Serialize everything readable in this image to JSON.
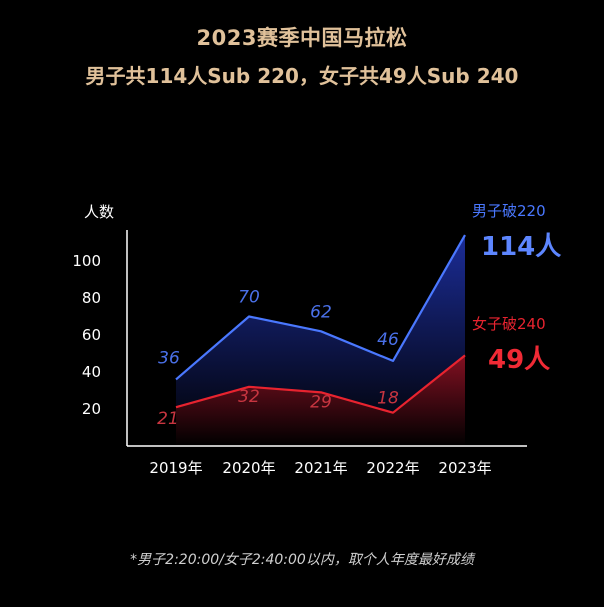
{
  "chart_data": {
    "type": "area",
    "title": "2023赛季中国马拉松",
    "subtitle": "男子共114人Sub 220，女子共49人Sub 240",
    "ylabel": "人数",
    "xlabel": "",
    "categories": [
      "2019年",
      "2020年",
      "2021年",
      "2022年",
      "2023年"
    ],
    "yticks": [
      20,
      40,
      60,
      80,
      100
    ],
    "ylim": [
      0,
      120
    ],
    "grid": false,
    "legend_position": "right",
    "series": [
      {
        "name": "男子破220",
        "values": [
          36,
          70,
          62,
          46,
          114
        ],
        "point_labels": [
          "36",
          "70",
          "62",
          "46",
          ""
        ],
        "end_label": "114人",
        "color": "#4a78ff",
        "fill_top": "#1d2fa0",
        "fill_bottom": "#000000"
      },
      {
        "name": "女子破240",
        "values": [
          21,
          32,
          29,
          18,
          49
        ],
        "point_labels": [
          "21",
          "32",
          "29",
          "18",
          ""
        ],
        "end_label": "49人",
        "color": "#e8232f",
        "fill_top": "#8a1020",
        "fill_bottom": "#000000"
      }
    ],
    "axis_color": "#ffffff"
  },
  "footnote": "*男子2:20:00/女子2:40:00以内，取个人年度最好成绩"
}
